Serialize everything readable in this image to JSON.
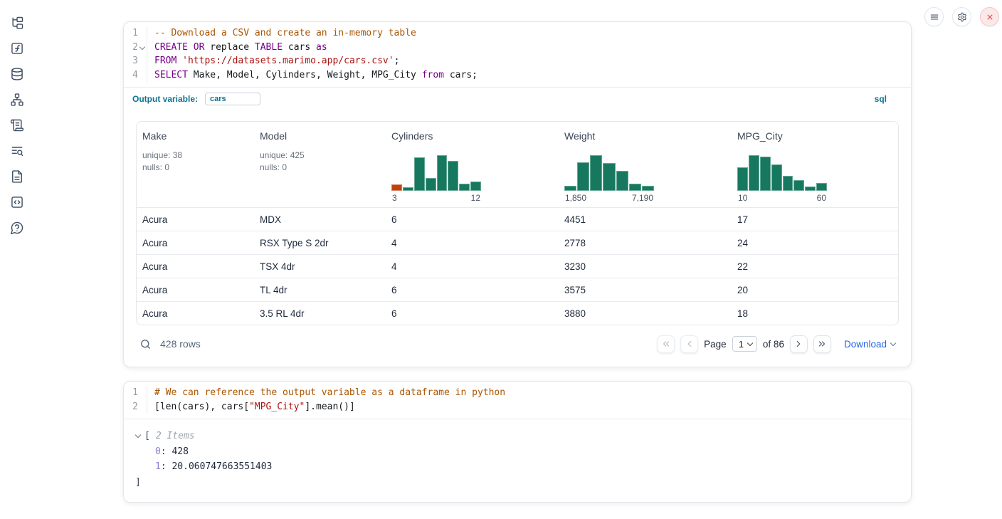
{
  "app": {
    "name": "marimo notebook"
  },
  "colors": {
    "accent_teal": "#0e7490",
    "histogram_green": "#16795f",
    "histogram_orange": "#c2410c",
    "download_blue": "#2563eb",
    "code_keyword": "#770088",
    "code_comment": "#aa5500",
    "code_string": "#aa1111",
    "close_button_red": "#dc5353"
  },
  "sidebar": {
    "items": [
      {
        "name": "files",
        "icon": "file-tree-icon"
      },
      {
        "name": "variables",
        "icon": "function-square-icon"
      },
      {
        "name": "data-sources",
        "icon": "database-icon"
      },
      {
        "name": "dependencies",
        "icon": "dependency-graph-icon"
      },
      {
        "name": "logs",
        "icon": "scroll-icon"
      },
      {
        "name": "tracing",
        "icon": "list-search-icon"
      },
      {
        "name": "documentation",
        "icon": "file-text-icon"
      },
      {
        "name": "snippets",
        "icon": "code-square-icon"
      },
      {
        "name": "help",
        "icon": "chat-question-icon"
      }
    ]
  },
  "topbar": {
    "buttons": [
      {
        "name": "menu",
        "icon": "menu-icon"
      },
      {
        "name": "settings",
        "icon": "gear-icon"
      },
      {
        "name": "shutdown",
        "icon": "close-icon"
      }
    ]
  },
  "sql_cell": {
    "line_numbers": [
      1,
      2,
      3,
      4
    ],
    "fold_line": 2,
    "code": [
      [
        {
          "t": "cm",
          "v": "-- Download a CSV and create an in-memory table"
        }
      ],
      [
        {
          "t": "kw",
          "v": "CREATE"
        },
        {
          "t": "pl",
          "v": " "
        },
        {
          "t": "kw",
          "v": "OR"
        },
        {
          "t": "pl",
          "v": " replace "
        },
        {
          "t": "kw",
          "v": "TABLE"
        },
        {
          "t": "pl",
          "v": " cars "
        },
        {
          "t": "kw",
          "v": "as"
        }
      ],
      [
        {
          "t": "kw",
          "v": "FROM"
        },
        {
          "t": "pl",
          "v": " "
        },
        {
          "t": "str",
          "v": "'https://datasets.marimo.app/cars.csv'"
        },
        {
          "t": "pl",
          "v": ";"
        }
      ],
      [
        {
          "t": "kw",
          "v": "SELECT"
        },
        {
          "t": "pl",
          "v": " Make, Model, Cylinders, Weight, MPG_City "
        },
        {
          "t": "kw",
          "v": "from"
        },
        {
          "t": "pl",
          "v": " cars;"
        }
      ]
    ],
    "output_variable_label": "Output variable:",
    "output_variable_value": "cars",
    "language_badge": "sql"
  },
  "table": {
    "columns": [
      {
        "name": "Make",
        "meta": [
          "unique: 38",
          "nulls: 0"
        ]
      },
      {
        "name": "Model",
        "meta": [
          "unique: 425",
          "nulls: 0"
        ]
      },
      {
        "name": "Cylinders",
        "histogram": {
          "bars": [
            9,
            5,
            47,
            18,
            50,
            42,
            10,
            13
          ],
          "highlight_index": 0,
          "min_label": "3",
          "max_label": "12"
        }
      },
      {
        "name": "Weight",
        "histogram": {
          "bars": [
            7,
            40,
            50,
            39,
            28,
            10,
            7
          ],
          "min_label": "1,850",
          "max_label": "7,190"
        }
      },
      {
        "name": "MPG_City",
        "histogram": {
          "bars": [
            33,
            50,
            48,
            37,
            21,
            15,
            6,
            11
          ],
          "min_label": "10",
          "max_label": "60"
        }
      }
    ],
    "rows": [
      [
        "Acura",
        "MDX",
        "6",
        "4451",
        "17"
      ],
      [
        "Acura",
        "RSX Type S 2dr",
        "4",
        "2778",
        "24"
      ],
      [
        "Acura",
        "TSX 4dr",
        "4",
        "3230",
        "22"
      ],
      [
        "Acura",
        "TL 4dr",
        "6",
        "3575",
        "20"
      ],
      [
        "Acura",
        "3.5 RL 4dr",
        "6",
        "3880",
        "18"
      ]
    ],
    "footer": {
      "row_count": "428 rows",
      "page_label": "Page",
      "page_value": "1",
      "of_label": "of 86",
      "download_label": "Download"
    }
  },
  "python_cell": {
    "line_numbers": [
      1,
      2
    ],
    "fold_line": null,
    "code": [
      [
        {
          "t": "cm",
          "v": "# We can reference the output variable as a dataframe in python"
        }
      ],
      [
        {
          "t": "pl",
          "v": "[len(cars), cars["
        },
        {
          "t": "str",
          "v": "\"MPG_City\""
        },
        {
          "t": "pl",
          "v": "].mean()]"
        }
      ]
    ]
  },
  "console_output": {
    "open_bracket": "[",
    "items_label": "2 Items",
    "items": [
      {
        "key": "0",
        "value": "428"
      },
      {
        "key": "1",
        "value": "20.060747663551403"
      }
    ],
    "close_bracket": "]"
  },
  "chart_data": [
    {
      "type": "bar",
      "title": "Cylinders column histogram",
      "x_axis_min_label": "3",
      "x_axis_max_label": "12",
      "relative_bar_heights": [
        9,
        5,
        47,
        18,
        50,
        42,
        10,
        13
      ],
      "bar_colors": [
        "#c2410c",
        "#16795f",
        "#16795f",
        "#16795f",
        "#16795f",
        "#16795f",
        "#16795f",
        "#16795f"
      ]
    },
    {
      "type": "bar",
      "title": "Weight column histogram",
      "x_axis_min_label": "1,850",
      "x_axis_max_label": "7,190",
      "relative_bar_heights": [
        7,
        40,
        50,
        39,
        28,
        10,
        7
      ]
    },
    {
      "type": "bar",
      "title": "MPG_City column histogram",
      "x_axis_min_label": "10",
      "x_axis_max_label": "60",
      "relative_bar_heights": [
        33,
        50,
        48,
        37,
        21,
        15,
        6,
        11
      ]
    }
  ]
}
